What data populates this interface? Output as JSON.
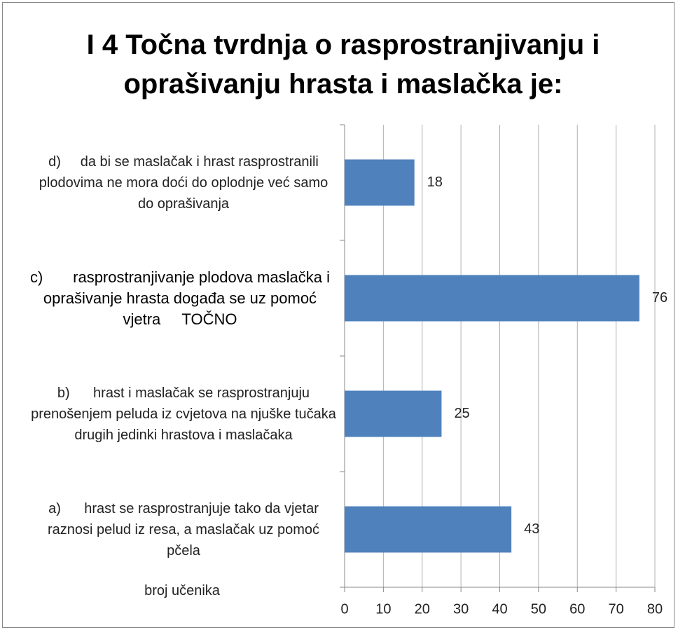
{
  "chart_data": {
    "type": "bar",
    "orientation": "horizontal",
    "title": "I 4 Točna tvrdnja o rasprostranjivanju i oprašivanju hrasta i maslačka je:",
    "x_label": "broj učenika",
    "categories": [
      "d)     da bi se maslačak i hrast rasprostranili plodovima ne mora doći do oplodnje već samo do oprašivanja",
      "c)       rasprostranjivanje plodova maslačka i oprašivanje hrasta događa se uz pomoć vjetra     TOČNO",
      "b)      hrast i maslačak se rasprostranjuju prenošenjem peluda iz cvjetova na njuške tučaka drugih jedinki hrastova i maslačaka",
      "a)      hrast se rasprostranjuje tako da vjetar raznosi pelud iz resa, a maslačak uz pomoć pčela"
    ],
    "values": [
      18,
      76,
      25,
      43
    ],
    "emphasized_category": 1,
    "color": "#4f81bd",
    "xlim": [
      0,
      80
    ],
    "xticks": [
      0,
      10,
      20,
      30,
      40,
      50,
      60,
      70,
      80
    ],
    "grid": true
  }
}
